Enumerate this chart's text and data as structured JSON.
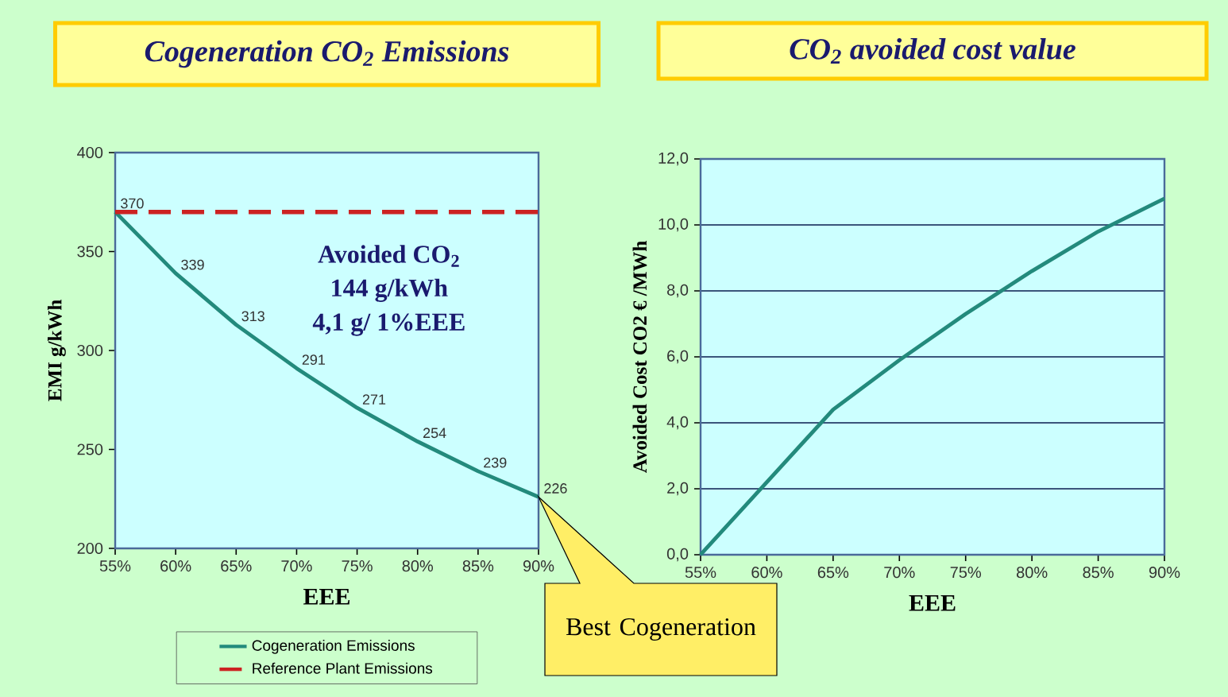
{
  "chart_data": [
    {
      "type": "line",
      "title": "Cogeneration CO$_{2}$ Emissions",
      "xlabel": "EEE",
      "ylabel": "EMI g/kWh",
      "categories": [
        "55%",
        "60%",
        "65%",
        "70%",
        "75%",
        "80%",
        "85%",
        "90%"
      ],
      "series": [
        {
          "name": "Cogeneration Emissions",
          "color": "#238a7c",
          "line_style": "solid",
          "values": [
            370,
            339,
            313,
            291,
            271,
            254,
            239,
            226
          ],
          "value_labels": [
            "370",
            "339",
            "313",
            "291",
            "271",
            "254",
            "239",
            "226"
          ]
        },
        {
          "name": "Reference Plant Emissions",
          "color": "#cc2222",
          "line_style": "dashed",
          "values": [
            370,
            370,
            370,
            370,
            370,
            370,
            370,
            370
          ]
        }
      ],
      "ylim": [
        200,
        400
      ],
      "yticks": [
        200,
        250,
        300,
        350,
        400
      ],
      "grid": false,
      "legend": "bottom",
      "annotations": [
        "Avoided CO$_{2}$",
        "144 g/kWh",
        "4,1 g/ 1%EEE",
        "Best Cogeneration"
      ]
    },
    {
      "type": "line",
      "title": "CO$_{2}$ avoided cost value",
      "xlabel": "EEE",
      "ylabel": "Avoided Cost CO2 € /MWh",
      "categories": [
        "55%",
        "60%",
        "65%",
        "70%",
        "75%",
        "80%",
        "85%",
        "90%"
      ],
      "series": [
        {
          "color": "#238a7c",
          "line_style": "solid",
          "values": [
            0,
            2.2,
            4.4,
            5.9,
            7.3,
            8.6,
            9.8,
            10.8
          ]
        }
      ],
      "ylim": [
        0,
        12
      ],
      "yticks": [
        {
          "value": 0,
          "label": "0,0"
        },
        {
          "value": 2,
          "label": "2,0"
        },
        {
          "value": 4,
          "label": "4,0"
        },
        {
          "value": 6,
          "label": "6,0"
        },
        {
          "value": 8,
          "label": "8,0"
        },
        {
          "value": 10,
          "label": "10,0"
        },
        {
          "value": 12,
          "label": "12,0"
        }
      ],
      "grid": "y",
      "legend": false
    }
  ]
}
